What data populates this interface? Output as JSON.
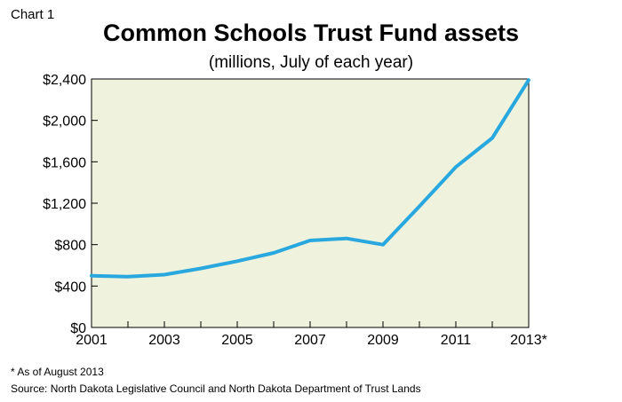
{
  "header": {
    "chart_label": "Chart 1"
  },
  "footer": {
    "footnote": "* As of August 2013",
    "source": "Source: North Dakota Legislative Council and North Dakota Department of Trust Lands"
  },
  "colors": {
    "plot_background": "#eff2dc",
    "line": "#29a8e0",
    "axis": "#000000"
  },
  "chart_data": {
    "type": "line",
    "title": "Common Schools Trust Fund assets",
    "subtitle": "(millions, July of each year)",
    "xlabel": "",
    "ylabel": "",
    "ylim": [
      0,
      2400
    ],
    "xlim": [
      2001,
      2013
    ],
    "grid": false,
    "y_ticks": [
      0,
      400,
      800,
      1200,
      1600,
      2000,
      2400
    ],
    "y_tick_labels": [
      "$0",
      "$400",
      "$800",
      "$1,200",
      "$1,600",
      "$2,000",
      "$2,400"
    ],
    "x_ticks": [
      2001,
      2003,
      2005,
      2007,
      2009,
      2011,
      2013
    ],
    "x_tick_labels": [
      "2001",
      "2003",
      "2005",
      "2007",
      "2009",
      "2011",
      "2013*"
    ],
    "series": [
      {
        "x": [
          2001,
          2002,
          2003,
          2004,
          2005,
          2006,
          2007,
          2008,
          2009,
          2010,
          2011,
          2012,
          2013
        ],
        "values": [
          500,
          490,
          510,
          570,
          640,
          720,
          840,
          860,
          800,
          1170,
          1550,
          1830,
          2390
        ]
      }
    ]
  }
}
